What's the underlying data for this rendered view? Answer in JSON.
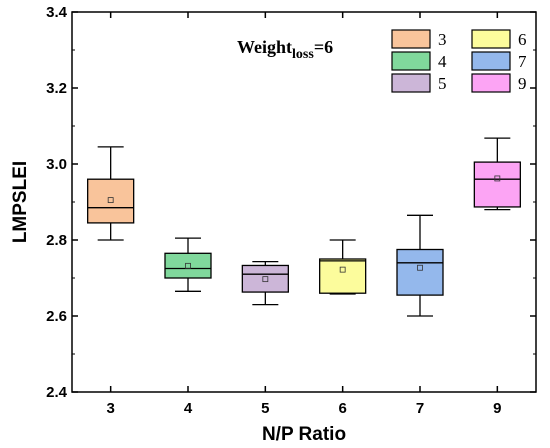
{
  "chart_data": {
    "type": "box",
    "title": "",
    "xlabel": "N/P Ratio",
    "ylabel": "LMPSLEI",
    "ylim": [
      2.4,
      3.4
    ],
    "yticks": [
      "2.4",
      "2.6",
      "2.8",
      "3.0",
      "3.2",
      "3.4"
    ],
    "categories": [
      "3",
      "4",
      "5",
      "6",
      "7",
      "9"
    ],
    "annotation": {
      "main": "Weight",
      "sub": "loss",
      "suffix": "=6"
    },
    "legend_position": "top-right",
    "series": [
      {
        "name": "3",
        "color": "#f9c49b",
        "whisker_low": 2.8,
        "q1": 2.845,
        "median": 2.885,
        "q3": 2.96,
        "whisker_high": 3.045,
        "mean": 2.905
      },
      {
        "name": "4",
        "color": "#80d89c",
        "whisker_low": 2.665,
        "q1": 2.7,
        "median": 2.725,
        "q3": 2.765,
        "whisker_high": 2.805,
        "mean": 2.732
      },
      {
        "name": "5",
        "color": "#ccb6d8",
        "whisker_low": 2.63,
        "q1": 2.663,
        "median": 2.71,
        "q3": 2.733,
        "whisker_high": 2.743,
        "mean": 2.697
      },
      {
        "name": "6",
        "color": "#fcfc9c",
        "whisker_low": 2.658,
        "q1": 2.66,
        "median": 2.745,
        "q3": 2.75,
        "whisker_high": 2.8,
        "mean": 2.722
      },
      {
        "name": "7",
        "color": "#94b8ec",
        "whisker_low": 2.6,
        "q1": 2.655,
        "median": 2.74,
        "q3": 2.775,
        "whisker_high": 2.865,
        "mean": 2.727
      },
      {
        "name": "9",
        "color": "#fca4f4",
        "whisker_low": 2.88,
        "q1": 2.887,
        "median": 2.96,
        "q3": 3.005,
        "whisker_high": 3.068,
        "mean": 2.962
      }
    ]
  }
}
